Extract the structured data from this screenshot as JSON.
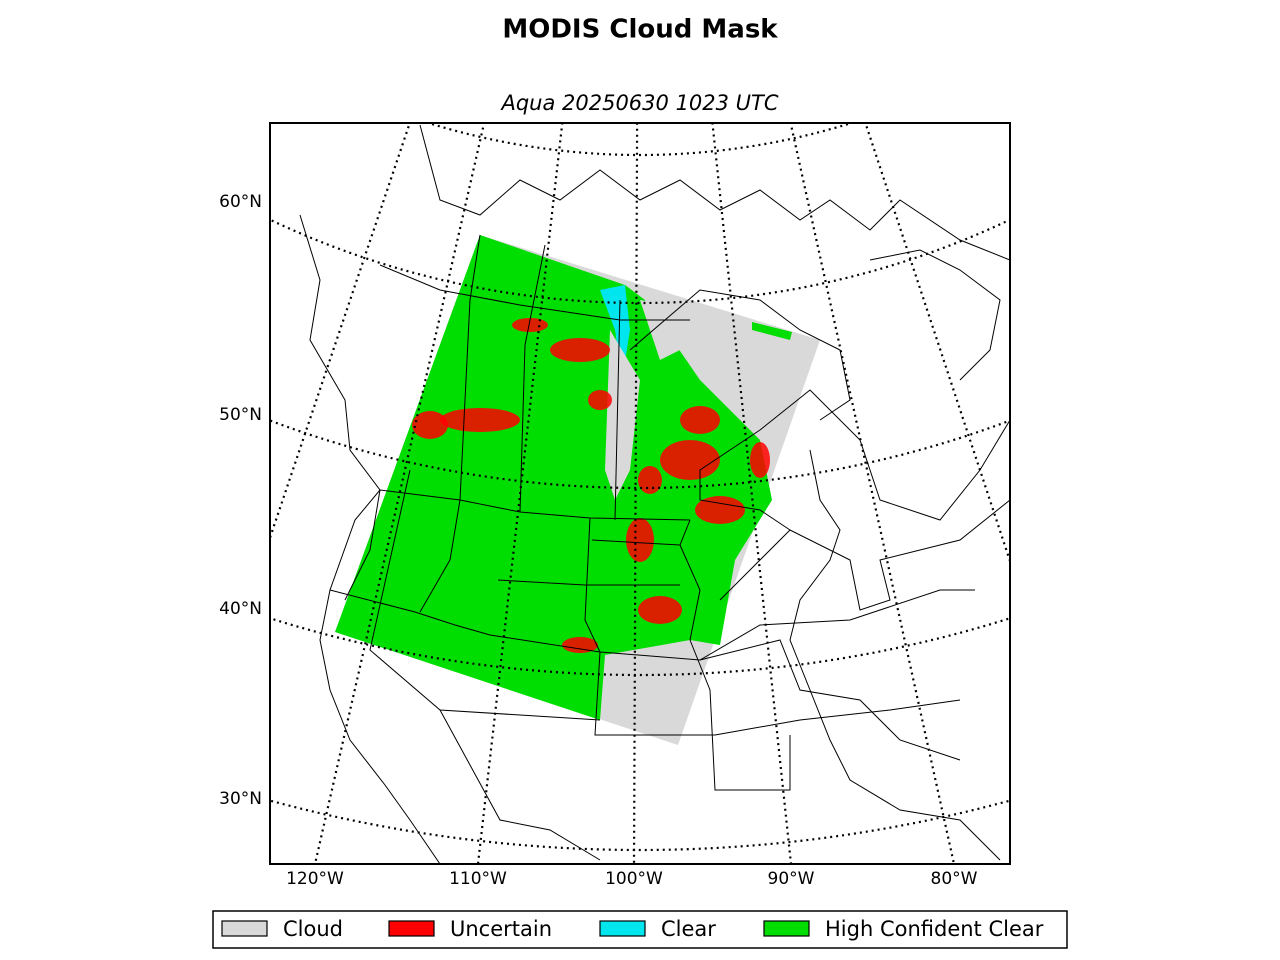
{
  "title": "MODIS Cloud Mask",
  "subtitle": "Aqua 20250630 1023 UTC",
  "lat_labels": [
    "60°N",
    "50°N",
    "40°N",
    "30°N"
  ],
  "lon_labels": [
    "120°W",
    "110°W",
    "100°W",
    "90°W",
    "80°W"
  ],
  "legend": [
    {
      "label": "Cloud",
      "color": "#d9d9d9"
    },
    {
      "label": "Uncertain",
      "color": "#ff0000"
    },
    {
      "label": "Clear",
      "color": "#00e5ee"
    },
    {
      "label": "High Confident Clear",
      "color": "#00dd00"
    }
  ]
}
